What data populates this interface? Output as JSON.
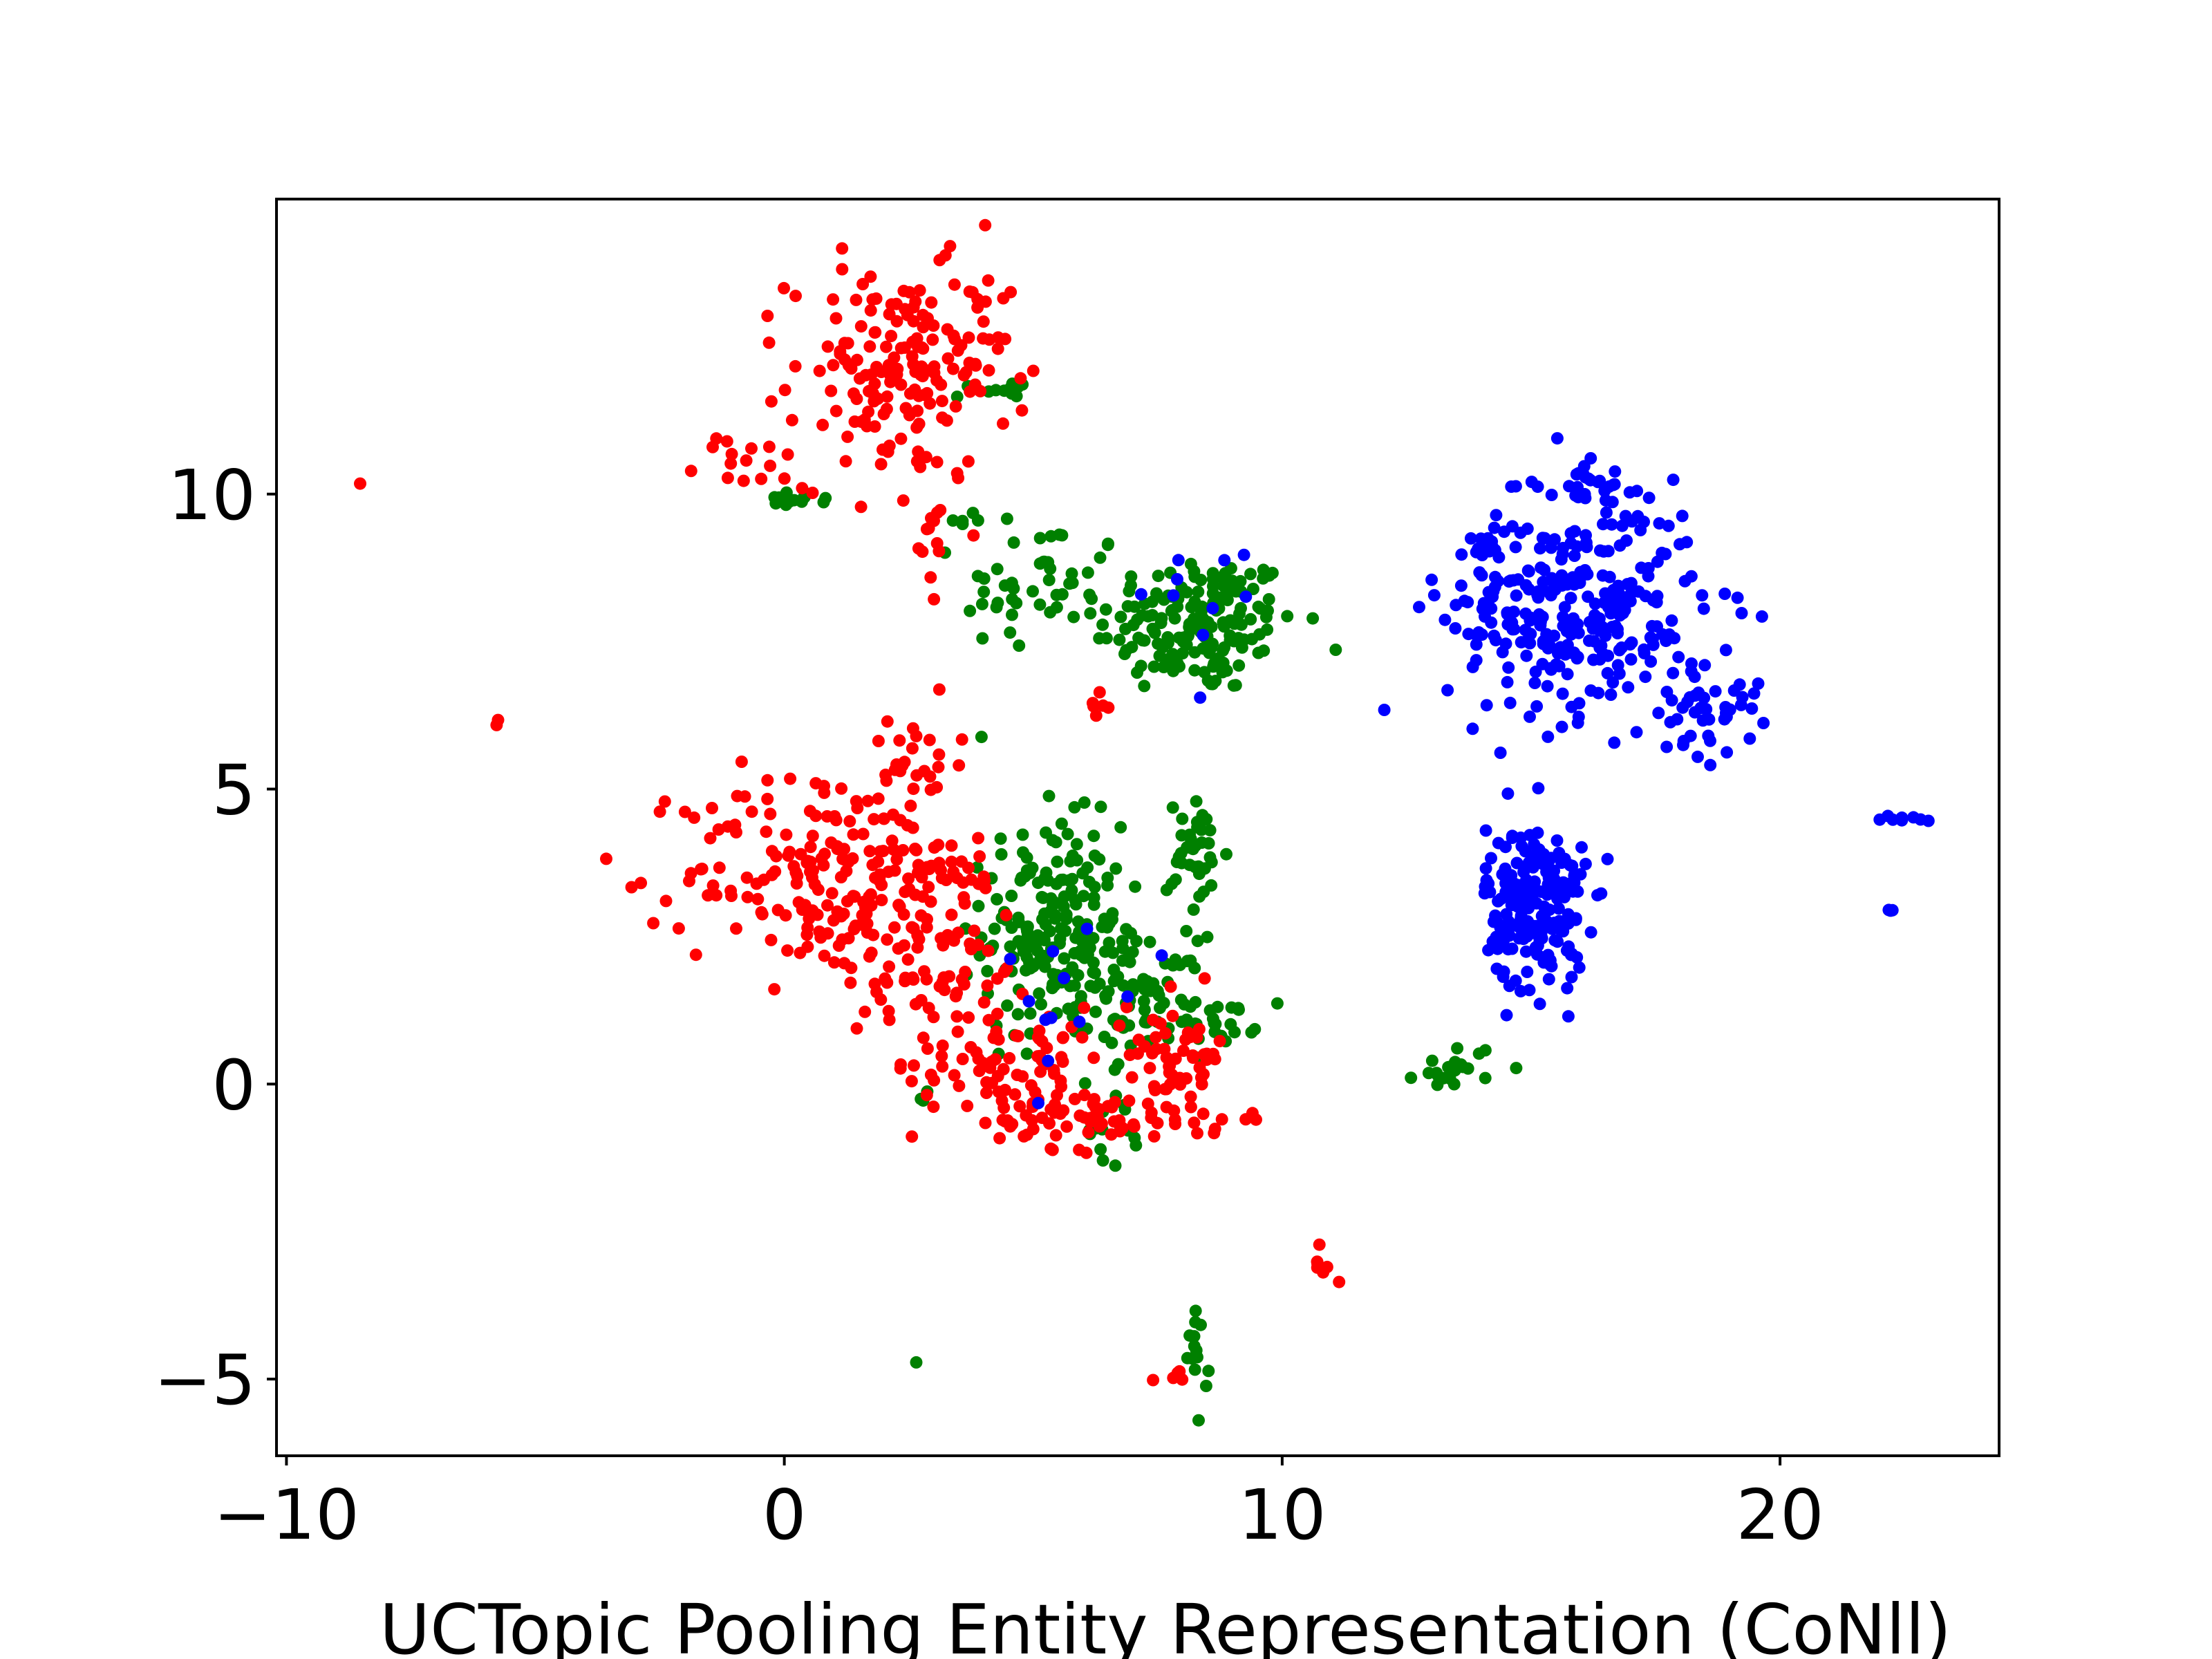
{
  "chart_data": {
    "type": "scatter",
    "title": "",
    "xlabel": "UCTopic Pooling Entity Representation (CoNll)",
    "ylabel": "",
    "xlim": [
      -10.2,
      24.4
    ],
    "ylim": [
      -6.3,
      15.0
    ],
    "grid": false,
    "legend": "none",
    "x_ticks": [
      -10,
      0,
      10,
      20
    ],
    "x_tick_labels": [
      "−10",
      "0",
      "10",
      "20"
    ],
    "y_ticks": [
      -5,
      0,
      5,
      10
    ],
    "y_tick_labels": [
      "−5",
      "0",
      "5",
      "10"
    ],
    "colors": {
      "red": "#ff0000",
      "green": "#008000",
      "blue": "#0000ff"
    },
    "clusters": [
      {
        "color": "red",
        "cx": 2.3,
        "cy": 12.0,
        "sx": 1.1,
        "sy": 0.9,
        "n": 170
      },
      {
        "color": "red",
        "cx": -0.8,
        "cy": 10.5,
        "sx": 0.5,
        "sy": 0.25,
        "n": 14
      },
      {
        "color": "red",
        "cx": 2.9,
        "cy": 9.3,
        "sx": 0.2,
        "sy": 0.6,
        "n": 14
      },
      {
        "color": "red",
        "cx": 0.8,
        "cy": 3.6,
        "sx": 1.4,
        "sy": 0.9,
        "n": 180
      },
      {
        "color": "red",
        "cx": 3.0,
        "cy": 2.4,
        "sx": 1.1,
        "sy": 1.0,
        "n": 100
      },
      {
        "color": "red",
        "cx": 4.6,
        "cy": 0.3,
        "sx": 1.0,
        "sy": 0.5,
        "n": 80
      },
      {
        "color": "red",
        "cx": 6.2,
        "cy": -0.6,
        "sx": 1.0,
        "sy": 0.25,
        "n": 50
      },
      {
        "color": "red",
        "cx": 7.9,
        "cy": 0.5,
        "sx": 0.5,
        "sy": 0.5,
        "n": 60
      },
      {
        "color": "red",
        "cx": 2.6,
        "cy": 5.3,
        "sx": 0.5,
        "sy": 0.4,
        "n": 25
      },
      {
        "color": "red",
        "cx": 6.3,
        "cy": 6.4,
        "sx": 0.15,
        "sy": 0.1,
        "n": 6
      },
      {
        "color": "red",
        "cx": 8.8,
        "cy": -0.6,
        "sx": 0.3,
        "sy": 0.15,
        "n": 6
      },
      {
        "color": "red",
        "cx": 10.8,
        "cy": -3.1,
        "sx": 0.15,
        "sy": 0.2,
        "n": 7
      },
      {
        "color": "red",
        "cx": 7.8,
        "cy": -4.9,
        "sx": 0.2,
        "sy": 0.1,
        "n": 5
      },
      {
        "color": "red",
        "cx": -8.5,
        "cy": 10.2,
        "sx": 0.02,
        "sy": 0.02,
        "n": 1
      },
      {
        "color": "red",
        "cx": -5.8,
        "cy": 6.1,
        "sx": 0.03,
        "sy": 0.05,
        "n": 2
      },
      {
        "color": "red",
        "cx": 4.0,
        "cy": 13.4,
        "sx": 0.2,
        "sy": 0.5,
        "n": 10
      },
      {
        "color": "green",
        "cx": 8.3,
        "cy": 7.8,
        "sx": 1.0,
        "sy": 0.6,
        "n": 170
      },
      {
        "color": "green",
        "cx": 5.2,
        "cy": 8.4,
        "sx": 0.8,
        "sy": 0.6,
        "n": 45
      },
      {
        "color": "green",
        "cx": 5.4,
        "cy": 2.6,
        "sx": 0.7,
        "sy": 0.9,
        "n": 200
      },
      {
        "color": "green",
        "cx": 7.2,
        "cy": 1.5,
        "sx": 0.6,
        "sy": 0.5,
        "n": 70
      },
      {
        "color": "green",
        "cx": 8.3,
        "cy": 3.8,
        "sx": 0.3,
        "sy": 0.5,
        "n": 40
      },
      {
        "color": "green",
        "cx": 8.7,
        "cy": 1.1,
        "sx": 0.4,
        "sy": 0.2,
        "n": 25
      },
      {
        "color": "green",
        "cx": 0.2,
        "cy": 9.9,
        "sx": 0.3,
        "sy": 0.06,
        "n": 14
      },
      {
        "color": "green",
        "cx": 4.2,
        "cy": 11.8,
        "sx": 0.35,
        "sy": 0.08,
        "n": 12
      },
      {
        "color": "green",
        "cx": 6.6,
        "cy": -0.8,
        "sx": 0.3,
        "sy": 0.3,
        "n": 18
      },
      {
        "color": "green",
        "cx": 13.5,
        "cy": 0.3,
        "sx": 0.4,
        "sy": 0.2,
        "n": 22
      },
      {
        "color": "green",
        "cx": 8.3,
        "cy": -4.6,
        "sx": 0.1,
        "sy": 0.5,
        "n": 15
      },
      {
        "color": "green",
        "cx": 2.8,
        "cy": -0.2,
        "sx": 0.05,
        "sy": 0.05,
        "n": 3
      },
      {
        "color": "green",
        "cx": 2.7,
        "cy": -4.7,
        "sx": 0.02,
        "sy": 0.02,
        "n": 1
      },
      {
        "color": "green",
        "cx": 3.6,
        "cy": 9.6,
        "sx": 0.3,
        "sy": 0.1,
        "n": 6
      },
      {
        "color": "blue",
        "cx": 15.9,
        "cy": 8.0,
        "sx": 1.3,
        "sy": 0.9,
        "n": 300
      },
      {
        "color": "blue",
        "cx": 18.6,
        "cy": 6.4,
        "sx": 0.5,
        "sy": 0.4,
        "n": 40
      },
      {
        "color": "blue",
        "cx": 16.1,
        "cy": 10.2,
        "sx": 0.5,
        "sy": 0.3,
        "n": 30
      },
      {
        "color": "blue",
        "cx": 15.1,
        "cy": 3.0,
        "sx": 0.5,
        "sy": 0.7,
        "n": 220
      },
      {
        "color": "blue",
        "cx": 14.3,
        "cy": 9.1,
        "sx": 0.3,
        "sy": 0.15,
        "n": 10
      },
      {
        "color": "blue",
        "cx": 22.4,
        "cy": 4.5,
        "sx": 0.25,
        "sy": 0.05,
        "n": 8
      },
      {
        "color": "blue",
        "cx": 22.2,
        "cy": 3.0,
        "sx": 0.05,
        "sy": 0.05,
        "n": 3
      },
      {
        "color": "blue",
        "cx": 8.3,
        "cy": 8.0,
        "sx": 0.6,
        "sy": 0.5,
        "n": 10
      },
      {
        "color": "blue",
        "cx": 5.8,
        "cy": 1.9,
        "sx": 0.9,
        "sy": 0.9,
        "n": 12
      }
    ]
  }
}
